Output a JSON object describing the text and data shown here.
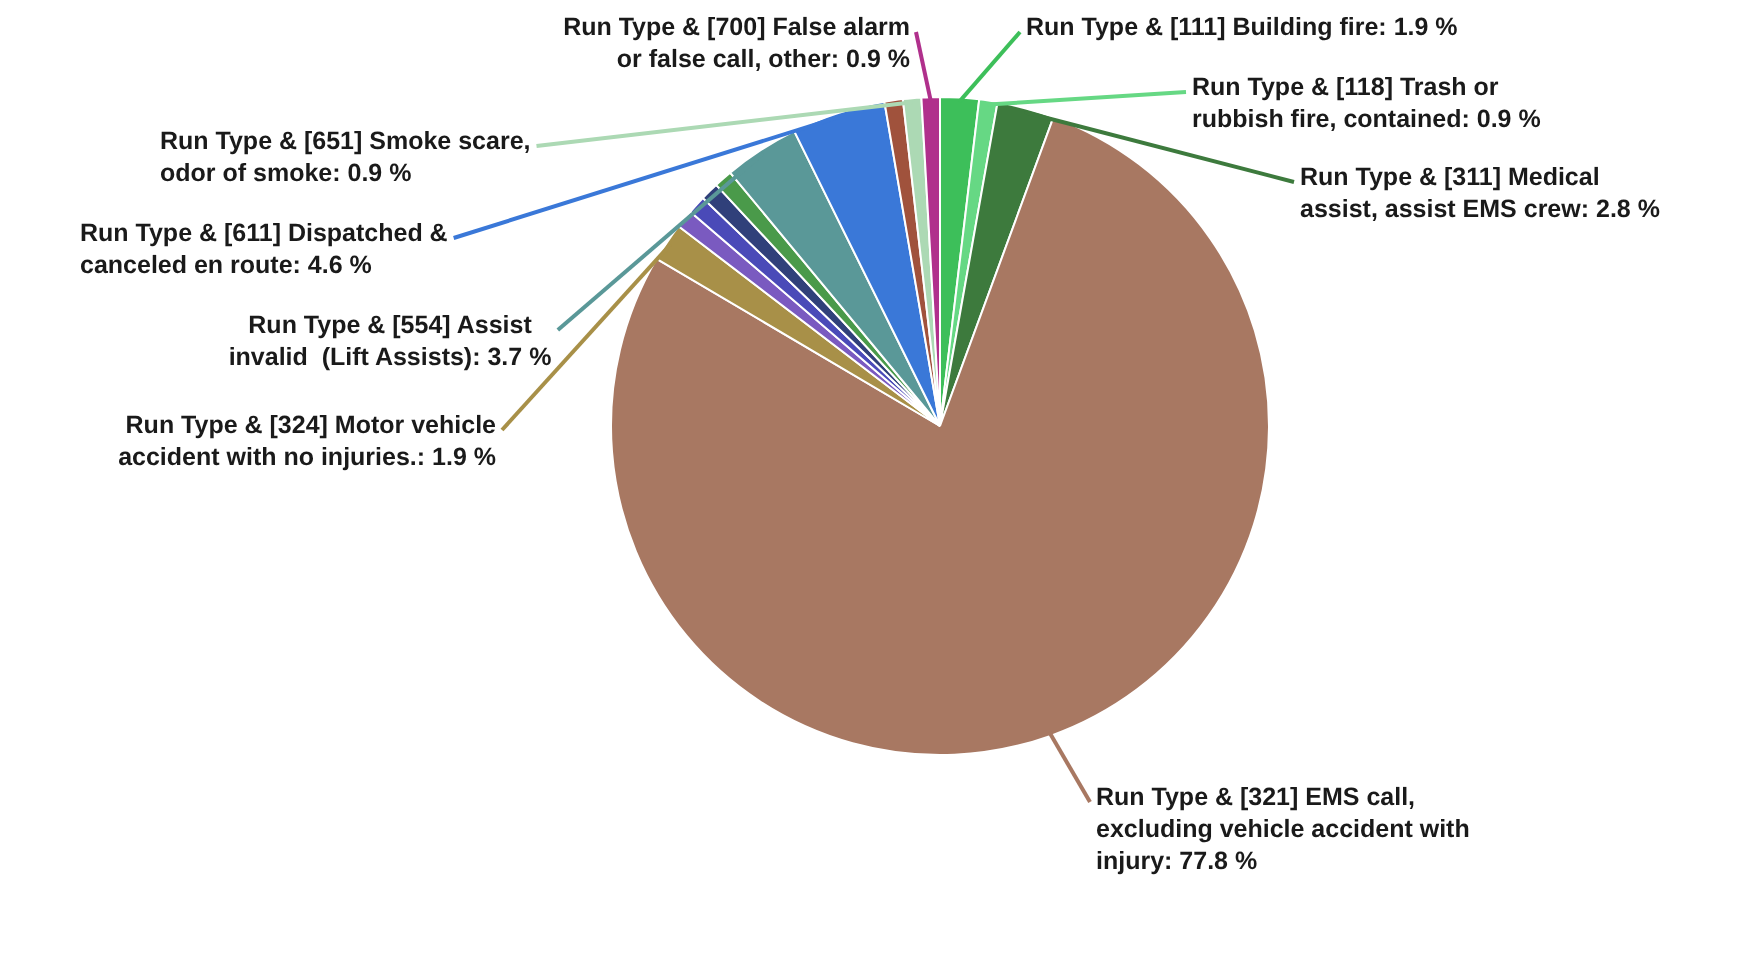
{
  "chart_data": {
    "type": "pie",
    "categories": [
      "Run Type & [111] Building fire",
      "Run Type & [118] Trash or rubbish fire, contained",
      "Run Type & [311] Medical assist, assist EMS crew",
      "Run Type & [321] EMS call, excluding vehicle accident with injury",
      "Run Type & [324] Motor vehicle accident with no injuries.",
      null,
      null,
      null,
      null,
      "Run Type & [554] Assist invalid  (Lift Assists)",
      "Run Type & [611] Dispatched & canceled en route",
      null,
      "Run Type & [651] Smoke scare, odor of smoke",
      "Run Type & [700] False alarm or false call, other"
    ],
    "values": [
      1.9,
      0.9,
      2.8,
      77.8,
      1.9,
      0.9,
      0.9,
      0.9,
      0.9,
      3.7,
      4.6,
      0.9,
      0.9,
      0.9
    ],
    "value_labels": [
      "1.9 %",
      "0.9 %",
      "2.8 %",
      "77.8 %",
      "1.9 %",
      null,
      null,
      null,
      null,
      "3.7 %",
      "4.6 %",
      null,
      "0.9 %",
      "0.9 %"
    ],
    "colors": [
      "#3dbf5a",
      "#66d884",
      "#3d7a3d",
      "#a87862",
      "#a89048",
      "#7a5ac0",
      "#4a4ab8",
      "#30407a",
      "#4a9a4a",
      "#5a9898",
      "#3a78d8",
      "#a0523c",
      "#acd9b4",
      "#b0308c"
    ],
    "legend": false
  }
}
